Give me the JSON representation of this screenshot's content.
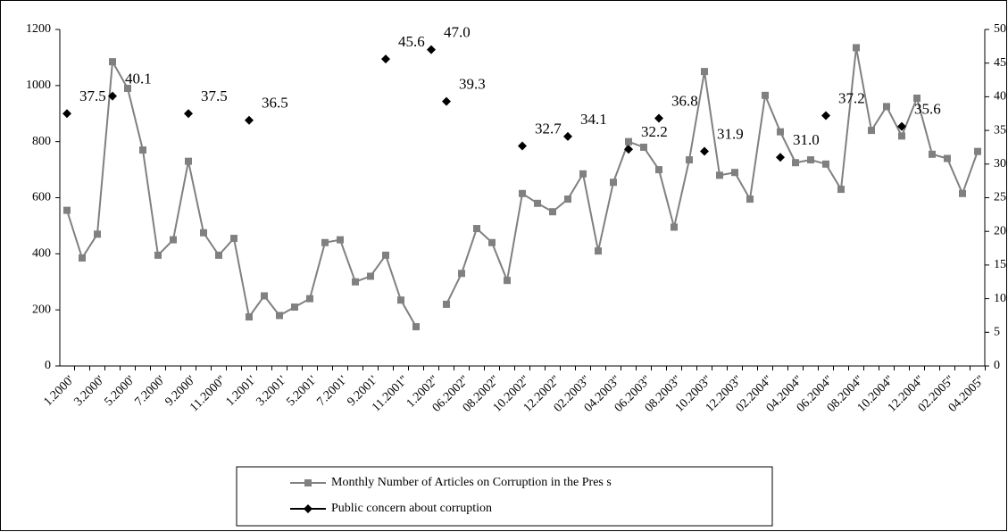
{
  "chart_data": {
    "type": "line",
    "categories": [
      "1.2000'",
      null,
      "3.2000'",
      null,
      "5.2000'",
      null,
      "7.2000'",
      null,
      "9.2000'",
      null,
      "11.2000''",
      null,
      "1.2001'",
      null,
      "3.2001'",
      null,
      "5.2001'",
      null,
      "7.2001'",
      null,
      "9.2001'",
      null,
      "11.2001''",
      null,
      "1.2002''",
      null,
      "06.2002''",
      null,
      "08.2002''",
      null,
      "10.2002''",
      null,
      "12.2002''",
      null,
      "02.2003''",
      null,
      "04.2003''",
      null,
      "06.2003''",
      null,
      "08.2003''",
      null,
      "10.2003''",
      null,
      "12.2003''",
      null,
      "02.2004''",
      null,
      "04.2004''",
      null,
      "06.2004''",
      null,
      "08.2004''",
      null,
      "10.2004''",
      null,
      "12.2004''",
      null,
      "02.2005''",
      null,
      "04.2005''"
    ],
    "series": [
      {
        "name": "Monthly Number of Articles on Corruption in the Pres s",
        "color": "#808080",
        "marker": "square",
        "line": true,
        "values": [
          555,
          385,
          470,
          1085,
          990,
          770,
          395,
          450,
          730,
          475,
          395,
          455,
          175,
          250,
          180,
          210,
          240,
          440,
          450,
          300,
          320,
          395,
          235,
          140,
          null,
          220,
          330,
          490,
          440,
          305,
          615,
          580,
          550,
          595,
          685,
          410,
          655,
          800,
          780,
          700,
          495,
          735,
          1050,
          680,
          690,
          595,
          965,
          835,
          725,
          735,
          720,
          630,
          1135,
          840,
          925,
          820,
          955,
          755,
          740,
          615,
          765
        ]
      },
      {
        "name": "Public concern about corruption",
        "color": "#000000",
        "marker": "diamond",
        "line": false,
        "axis": "y2",
        "values": [
          37.5,
          null,
          null,
          40.1,
          null,
          null,
          null,
          null,
          37.5,
          null,
          null,
          null,
          36.5,
          null,
          null,
          null,
          null,
          null,
          null,
          null,
          null,
          45.6,
          null,
          null,
          47.0,
          39.3,
          null,
          null,
          null,
          null,
          32.7,
          null,
          null,
          34.1,
          null,
          null,
          null,
          32.2,
          null,
          36.8,
          null,
          null,
          31.9,
          null,
          null,
          null,
          null,
          31.0,
          null,
          null,
          37.2,
          null,
          null,
          null,
          null,
          35.6,
          null,
          null,
          null,
          null,
          null
        ],
        "value_labels": [
          "37.5",
          null,
          null,
          "40.1",
          null,
          null,
          null,
          null,
          "37.5",
          null,
          null,
          null,
          "36.5",
          null,
          null,
          null,
          null,
          null,
          null,
          null,
          null,
          "45.6",
          null,
          null,
          "47.0",
          "39.3",
          null,
          null,
          null,
          null,
          "32.7",
          null,
          null,
          "34.1",
          null,
          null,
          null,
          "32.2",
          null,
          "36.8",
          null,
          null,
          "31.9",
          null,
          null,
          null,
          null,
          "31.0",
          null,
          null,
          "37.2",
          null,
          null,
          null,
          null,
          "35.6",
          null,
          null,
          null,
          null,
          null
        ]
      }
    ],
    "ylim": [
      0,
      1200
    ],
    "yticks": [
      0,
      200,
      400,
      600,
      800,
      1000,
      1200
    ],
    "y2lim": [
      0,
      50
    ],
    "y2ticks": [
      0,
      5,
      10,
      15,
      20,
      25,
      30,
      35,
      40,
      45,
      50
    ],
    "grid": false,
    "legend": "bottom"
  }
}
